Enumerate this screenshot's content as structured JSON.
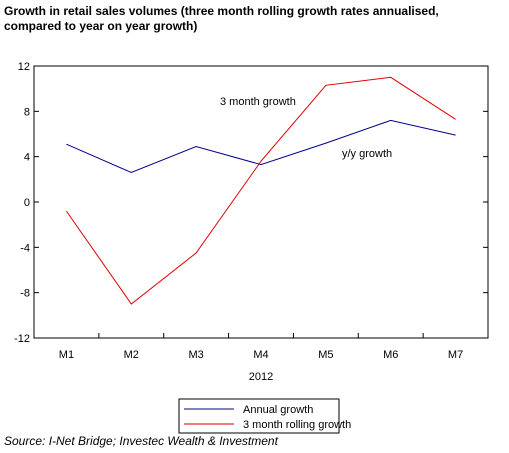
{
  "title_line1": "Growth in retail sales volumes (three month rolling growth rates annualised,",
  "title_line2": "compared to year on year growth)",
  "source": "Source: I-Net Bridge; Investec Wealth & Investment",
  "chart_data": {
    "type": "line",
    "categories": [
      "M1",
      "M2",
      "M3",
      "M4",
      "M5",
      "M6",
      "M7"
    ],
    "xlabel": "2012",
    "ylim": [
      -12,
      12
    ],
    "yticks": [
      12,
      8,
      4,
      0,
      -4,
      -8,
      -12
    ],
    "ytick_labels": [
      "12",
      "8",
      "4",
      "0",
      "-4",
      "-8",
      "-12"
    ],
    "series": [
      {
        "name": "Annual growth",
        "color": "#00008B",
        "values": [
          5.1,
          2.6,
          4.9,
          3.3,
          5.2,
          7.2,
          5.9
        ]
      },
      {
        "name": "3 month rolling growth",
        "color": "#E00000",
        "values": [
          -0.8,
          -9.0,
          -4.5,
          3.6,
          10.3,
          11.0,
          7.3
        ]
      }
    ],
    "annotations": [
      "3 month growth",
      "y/y growth"
    ],
    "legend_placement": "bottom",
    "grid": false
  }
}
